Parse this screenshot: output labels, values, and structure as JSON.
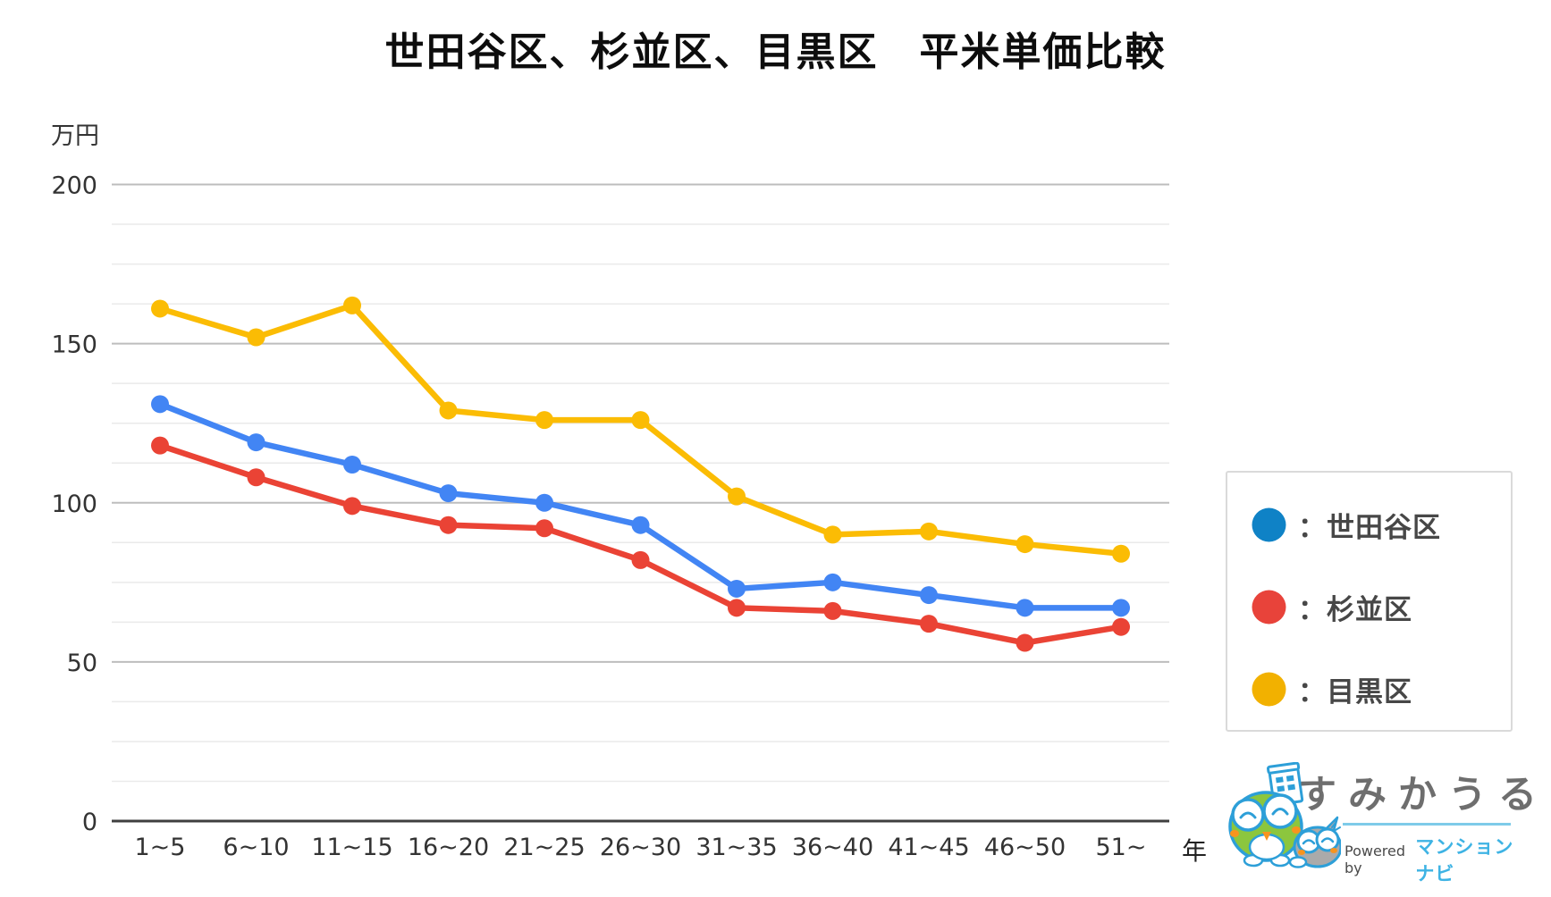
{
  "title": "世田谷区、杉並区、目黒区　平米単価比較",
  "axes": {
    "y_unit": "万円",
    "x_unit": "年"
  },
  "chart_data": {
    "type": "line",
    "title": "世田谷区、杉並区、目黒区　平米単価比較",
    "categories": [
      "1~5",
      "6~10",
      "11~15",
      "16~20",
      "21~25",
      "26~30",
      "31~35",
      "36~40",
      "41~45",
      "46~50",
      "51~"
    ],
    "series": [
      {
        "name": "世田谷区",
        "color": "#4285F4",
        "values": [
          131,
          119,
          112,
          103,
          100,
          93,
          73,
          75,
          71,
          67,
          67
        ]
      },
      {
        "name": "杉並区",
        "color": "#EA4335",
        "values": [
          118,
          108,
          99,
          93,
          92,
          82,
          67,
          66,
          62,
          56,
          61
        ]
      },
      {
        "name": "目黒区",
        "color": "#FBBC04",
        "values": [
          161,
          152,
          162,
          129,
          126,
          126,
          102,
          90,
          91,
          87,
          84
        ]
      }
    ],
    "xlabel": "年",
    "ylabel": "万円",
    "ylim": [
      0,
      200
    ],
    "yticks": [
      0,
      50,
      100,
      150,
      200
    ],
    "minor_grid_step": 12.5,
    "grid": true,
    "legend_position": "right"
  },
  "legend": {
    "items": [
      {
        "label": "：世田谷区",
        "color": "#0F82C6"
      },
      {
        "label": "：杉並区",
        "color": "#E8433A"
      },
      {
        "label": "：目黒区",
        "color": "#F2B100"
      }
    ]
  },
  "logo": {
    "name": "すみかうる",
    "powered_by": "Powered by",
    "brand": "マンションナビ"
  },
  "colors": {
    "major_gridline": "#bdbdbd",
    "minor_gridline": "#eaeaea",
    "axis_line": "#3f3f3f",
    "tick_label": "#333333"
  }
}
